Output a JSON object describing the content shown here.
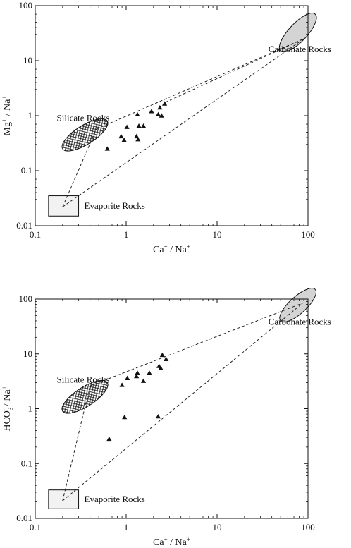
{
  "chart_data": [
    {
      "type": "scatter",
      "scale": "log-log",
      "xlim": [
        0.1,
        100
      ],
      "ylim": [
        0.01,
        100
      ],
      "x_ticks": [
        "0.1",
        "1",
        "10",
        "100"
      ],
      "y_ticks": [
        "0.01",
        "0.1",
        "1",
        "10",
        "100"
      ],
      "xlabel": {
        "base": "Ca",
        "sup": "+",
        "tail": " / Na",
        "sup2": "+"
      },
      "ylabel": {
        "base": "Mg",
        "sup": "+",
        "tail": " / Na",
        "sup2": "+",
        "sub": ""
      },
      "points": [
        {
          "x": 0.62,
          "y": 0.25
        },
        {
          "x": 0.88,
          "y": 0.42
        },
        {
          "x": 0.95,
          "y": 0.36
        },
        {
          "x": 1.02,
          "y": 0.62
        },
        {
          "x": 1.3,
          "y": 0.42
        },
        {
          "x": 1.33,
          "y": 1.05
        },
        {
          "x": 1.35,
          "y": 0.37
        },
        {
          "x": 1.38,
          "y": 0.65
        },
        {
          "x": 1.55,
          "y": 0.65
        },
        {
          "x": 1.9,
          "y": 1.2
        },
        {
          "x": 2.25,
          "y": 1.05
        },
        {
          "x": 2.35,
          "y": 1.4
        },
        {
          "x": 2.45,
          "y": 1.0
        },
        {
          "x": 2.65,
          "y": 1.65
        }
      ],
      "regions": [
        {
          "label": "Carbonate Rocks",
          "shape": "ellipse",
          "fill": "#d4d4d4",
          "x_range": [
            50,
            120
          ],
          "y_range": [
            15,
            70
          ]
        },
        {
          "label": "Silicate Rocks",
          "shape": "ellipse",
          "fill": "crosshatch",
          "x_range": [
            0.2,
            0.62
          ],
          "y_range": [
            0.25,
            0.8
          ]
        },
        {
          "label": "Evaporite Rocks",
          "shape": "rectangle",
          "fill": "#f2f2f2",
          "x_range": [
            0.14,
            0.3
          ],
          "y_range": [
            0.015,
            0.035
          ]
        }
      ],
      "mixing_lines": [
        [
          [
            0.2,
            0.022
          ],
          [
            0.47,
            0.57
          ]
        ],
        [
          [
            0.2,
            0.022
          ],
          [
            90,
            25
          ]
        ],
        [
          [
            0.47,
            0.57
          ],
          [
            90,
            25
          ]
        ],
        [
          [
            2.7,
            1.75
          ],
          [
            90,
            25
          ]
        ]
      ],
      "region_labels": [
        "Carbonate Rocks",
        "Silicate Rocks",
        "Evaporite Rocks"
      ]
    },
    {
      "type": "scatter",
      "scale": "log-log",
      "xlim": [
        0.1,
        100
      ],
      "ylim": [
        0.01,
        100
      ],
      "x_ticks": [
        "0.1",
        "1",
        "10",
        "100"
      ],
      "y_ticks": [
        "0.01",
        "0.1",
        "1",
        "10",
        "100"
      ],
      "xlabel": {
        "base": "Ca",
        "sup": "+",
        "tail": " / Na",
        "sup2": "+"
      },
      "ylabel": {
        "base": "HCO",
        "sub": "3",
        "sup": "-",
        "tail": " / Na",
        "sup2": "+"
      },
      "points": [
        {
          "x": 0.65,
          "y": 0.28
        },
        {
          "x": 0.9,
          "y": 2.7
        },
        {
          "x": 0.96,
          "y": 0.7
        },
        {
          "x": 1.03,
          "y": 3.6
        },
        {
          "x": 1.3,
          "y": 3.9
        },
        {
          "x": 1.33,
          "y": 4.5
        },
        {
          "x": 1.55,
          "y": 3.2
        },
        {
          "x": 1.8,
          "y": 4.5
        },
        {
          "x": 2.25,
          "y": 0.72
        },
        {
          "x": 2.3,
          "y": 6.0
        },
        {
          "x": 2.4,
          "y": 5.5
        },
        {
          "x": 2.5,
          "y": 9.5
        },
        {
          "x": 2.75,
          "y": 8.0
        }
      ],
      "regions": [
        {
          "label": "Carbonate Rocks",
          "shape": "ellipse",
          "fill": "#d4d4d4",
          "x_range": [
            50,
            120
          ],
          "y_range": [
            40,
            150
          ]
        },
        {
          "label": "Silicate Rocks",
          "shape": "ellipse",
          "fill": "crosshatch",
          "x_range": [
            0.2,
            0.62
          ],
          "y_range": [
            0.9,
            3.0
          ]
        },
        {
          "label": "Evaporite Rocks",
          "shape": "rectangle",
          "fill": "#f2f2f2",
          "x_range": [
            0.14,
            0.3
          ],
          "y_range": [
            0.015,
            0.033
          ]
        }
      ],
      "mixing_lines": [
        [
          [
            0.2,
            0.021
          ],
          [
            0.4,
            2.6
          ]
        ],
        [
          [
            0.2,
            0.021
          ],
          [
            88,
            85
          ]
        ],
        [
          [
            0.4,
            2.6
          ],
          [
            88,
            85
          ]
        ]
      ],
      "region_labels": [
        "Carbonate Rocks",
        "Silicate Rocks",
        "Evaporite Rocks"
      ]
    }
  ]
}
